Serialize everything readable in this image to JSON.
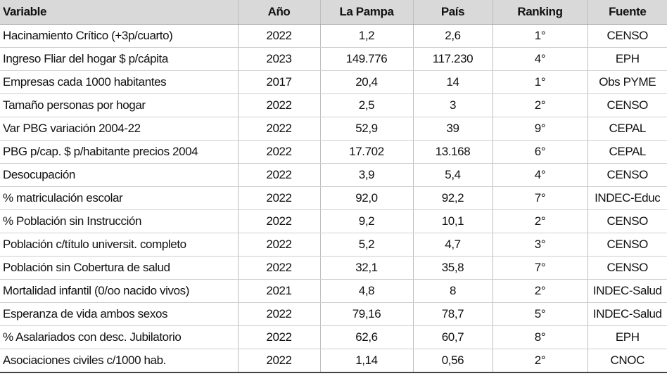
{
  "table": {
    "header": [
      "Variable",
      "Año",
      "La Pampa",
      "País",
      "Ranking",
      "Fuente"
    ],
    "rows": [
      [
        "Hacinamiento Crítico (+3p/cuarto)",
        "2022",
        "1,2",
        "2,6",
        "1°",
        "CENSO"
      ],
      [
        "Ingreso Fliar del hogar $ p/cápita",
        "2023",
        "149.776",
        "117.230",
        "4°",
        "EPH"
      ],
      [
        "Empresas cada 1000 habitantes",
        "2017",
        "20,4",
        "14",
        "1°",
        "Obs PYME"
      ],
      [
        "Tamaño personas por hogar",
        "2022",
        "2,5",
        "3",
        "2°",
        "CENSO"
      ],
      [
        "Var PBG variación 2004-22",
        "2022",
        "52,9",
        "39",
        "9°",
        "CEPAL"
      ],
      [
        "PBG p/cap. $ p/habitante precios 2004",
        "2022",
        "17.702",
        "13.168",
        "6°",
        "CEPAL"
      ],
      [
        "Desocupación",
        "2022",
        "3,9",
        "5,4",
        "4°",
        "CENSO"
      ],
      [
        "% matriculación escolar",
        "2022",
        "92,0",
        "92,2",
        "7°",
        "INDEC-Educ"
      ],
      [
        "% Población sin Instrucción",
        "2022",
        "9,2",
        "10,1",
        "2°",
        "CENSO"
      ],
      [
        "Población c/título universit. completo",
        "2022",
        "5,2",
        "4,7",
        "3°",
        "CENSO"
      ],
      [
        "Población sin Cobertura de salud",
        "2022",
        "32,1",
        "35,8",
        "7°",
        "CENSO"
      ],
      [
        "Mortalidad infantil (0/oo nacido vivos)",
        "2021",
        "4,8",
        "8",
        "2°",
        "INDEC-Salud"
      ],
      [
        "Esperanza de vida ambos sexos",
        "2022",
        "79,16",
        "78,7",
        "5°",
        "INDEC-Salud"
      ],
      [
        "% Asalariados con desc. Jubilatorio",
        "2022",
        "62,6",
        "60,7",
        "8°",
        "EPH"
      ],
      [
        "Asociaciones civiles c/1000 hab.",
        "2022",
        "1,14",
        "0,56",
        "2°",
        "CNOC"
      ]
    ]
  }
}
